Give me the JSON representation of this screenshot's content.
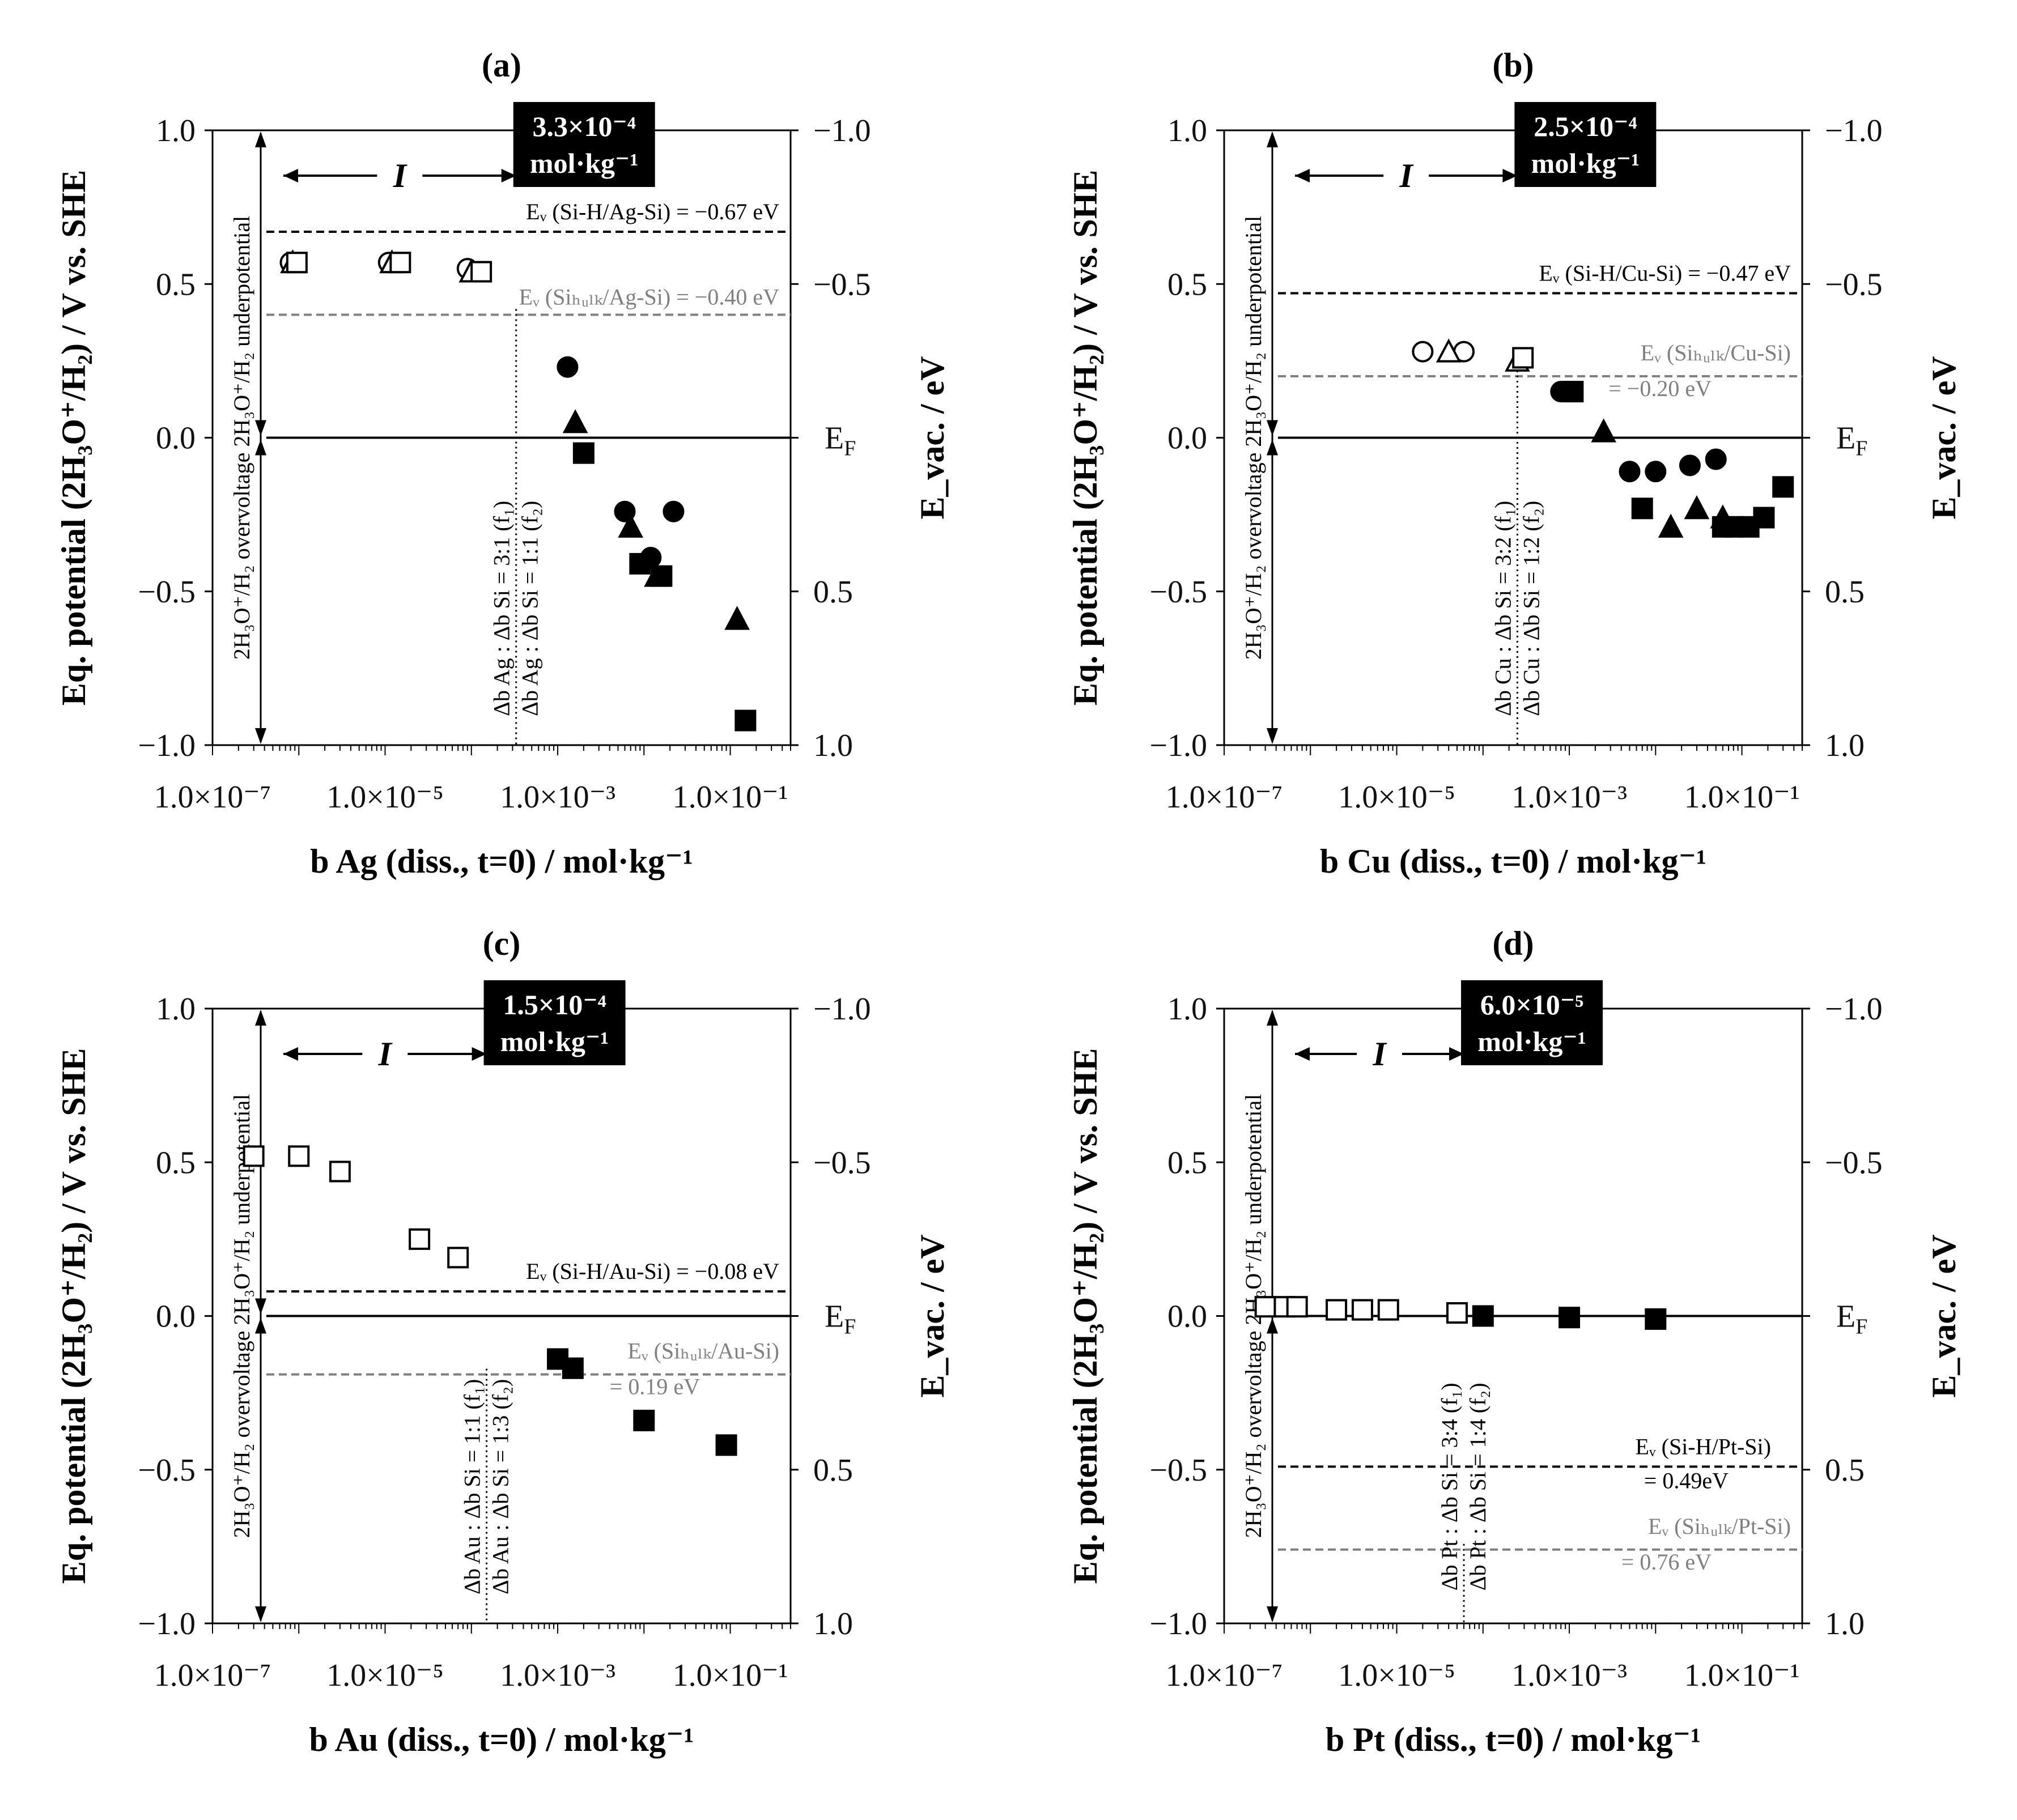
{
  "colors": {
    "black": "#000000",
    "gray": "#808080",
    "box": "#000000"
  },
  "panels": [
    {
      "id": "a",
      "title": "(a)",
      "xlabel": "b Ag (diss., t=0) / mol·kg⁻¹",
      "ylabel_left": "Eq. potential (2H₃O⁺/H₂) / V vs. SHE",
      "ylabel_right": "E_vac. / eV",
      "left_ticks": [
        "1.0",
        "0.5",
        "0.0",
        "−0.5",
        "−1.0"
      ],
      "right_ticks": [
        "−1.0",
        "−0.5",
        "E_F",
        "0.5",
        "1.0"
      ],
      "x_ticks": [
        "1.0×10⁻⁷",
        "1.0×10⁻⁵",
        "1.0×10⁻³",
        "1.0×10⁻¹"
      ],
      "box_line1": "3.3×10⁻⁴",
      "box_line2": "mol·kg⁻¹",
      "region_label": "I",
      "overvoltage_label": "2H₃O⁺/H₂ overvoltage 2H₃O⁺/H₂ underpotential",
      "ratio_label_1": "Δb Ag : Δb Si = 3:1 (f₁)",
      "ratio_label_2": "Δb Ag : Δb Si = 1:1 (f₂)",
      "ev_label_1": "Eᵥ (Si-H/Ag-Si) = −0.67 eV",
      "ev_label_2": "Eᵥ (Siₕᵤₗₖ/Ag-Si) = −0.40 eV",
      "ef_label": "E_F"
    },
    {
      "id": "b",
      "title": "(b)",
      "xlabel": "b Cu (diss., t=0) / mol·kg⁻¹",
      "ylabel_left": "Eq. potential (2H₃O⁺/H₂) / V vs. SHE",
      "ylabel_right": "E_vac. / eV",
      "left_ticks": [
        "1.0",
        "0.5",
        "0.0",
        "−0.5",
        "−1.0"
      ],
      "right_ticks": [
        "−1.0",
        "−0.5",
        "E_F",
        "0.5",
        "1.0"
      ],
      "x_ticks": [
        "1.0×10⁻⁷",
        "1.0×10⁻⁵",
        "1.0×10⁻³",
        "1.0×10⁻¹"
      ],
      "box_line1": "2.5×10⁻⁴",
      "box_line2": "mol·kg⁻¹",
      "region_label": "I",
      "overvoltage_label": "2H₃O⁺/H₂ overvoltage 2H₃O⁺/H₂ underpotential",
      "ratio_label_1": "Δb Cu : Δb Si = 3:2 (f₁)",
      "ratio_label_2": "Δb Cu : Δb Si = 1:2 (f₂)",
      "ev_label_1": "Eᵥ (Si-H/Cu-Si) = −0.47 eV",
      "ev_label_2": "Eᵥ (Siₕᵤₗₖ/Cu-Si)",
      "ev_label_2b": "= −0.20 eV",
      "ef_label": "E_F"
    },
    {
      "id": "c",
      "title": "(c)",
      "xlabel": "b Au (diss., t=0) / mol·kg⁻¹",
      "ylabel_left": "Eq. potential (2H₃O⁺/H₂) / V vs. SHE",
      "ylabel_right": "E_vac. / eV",
      "left_ticks": [
        "1.0",
        "0.5",
        "0.0",
        "−0.5",
        "−1.0"
      ],
      "right_ticks": [
        "−1.0",
        "−0.5",
        "E_F",
        "0.5",
        "1.0"
      ],
      "x_ticks": [
        "1.0×10⁻⁷",
        "1.0×10⁻⁵",
        "1.0×10⁻³",
        "1.0×10⁻¹"
      ],
      "box_line1": "1.5×10⁻⁴",
      "box_line2": "mol·kg⁻¹",
      "region_label": "I",
      "overvoltage_label": "2H₃O⁺/H₂ overvoltage 2H₃O⁺/H₂ underpotential",
      "ratio_label_1": "Δb Au : Δb Si = 1:1 (f₁)",
      "ratio_label_2": "Δb Au : Δb Si = 1:3 (f₂)",
      "ev_label_1": "Eᵥ (Si-H/Au-Si) = −0.08 eV",
      "ev_label_2": "Eᵥ (Siₕᵤₗₖ/Au-Si)",
      "ev_label_2b": "= 0.19 eV",
      "ef_label": "E_F"
    },
    {
      "id": "d",
      "title": "(d)",
      "xlabel": "b Pt (diss., t=0) / mol·kg⁻¹",
      "ylabel_left": "Eq. potential (2H₃O⁺/H₂) / V vs. SHE",
      "ylabel_right": "E_vac. / eV",
      "left_ticks": [
        "1.0",
        "0.5",
        "0.0",
        "−0.5",
        "−1.0"
      ],
      "right_ticks": [
        "−1.0",
        "−0.5",
        "E_F",
        "0.5",
        "1.0"
      ],
      "x_ticks": [
        "1.0×10⁻⁷",
        "1.0×10⁻⁵",
        "1.0×10⁻³",
        "1.0×10⁻¹"
      ],
      "box_line1": "6.0×10⁻⁵",
      "box_line2": "mol·kg⁻¹",
      "region_label": "I",
      "overvoltage_label": "2H₃O⁺/H₂ overvoltage 2H₃O⁺/H₂ underpotential",
      "ratio_label_1": "Δb Pt : Δb Si = 3:4 (f₁)",
      "ratio_label_2": "Δb Pt : Δb Si = 1:4 (f₂)",
      "ev_label_1": "Eᵥ (Si-H/Pt-Si)",
      "ev_label_1b": "= 0.49eV",
      "ev_label_2": "Eᵥ (Siₕᵤₗₖ/Pt-Si)",
      "ev_label_2b": "= 0.76 eV",
      "ef_label": "E_F"
    }
  ],
  "chart_data": [
    {
      "type": "scatter",
      "title": "(a)",
      "xlabel": "b Ag (diss., t=0) / mol·kg⁻¹",
      "ylabel": "Eq. potential (2H₃O⁺/H₂) / V vs. SHE",
      "xscale": "log",
      "xlim": [
        1e-07,
        0.5
      ],
      "ylim": [
        -1.0,
        1.0
      ],
      "threshold_b": 0.00033,
      "hlines": [
        {
          "y": 0.67,
          "style": "dashed",
          "color": "#000000"
        },
        {
          "y": 0.4,
          "style": "dashed",
          "color": "#808080"
        },
        {
          "y": 0.0,
          "style": "solid",
          "color": "#000000"
        }
      ],
      "series": [
        {
          "name": "open circle",
          "marker": "circle",
          "filled": false,
          "points": [
            [
              8e-07,
              0.57
            ],
            [
              1.1e-05,
              0.57
            ],
            [
              9e-05,
              0.55
            ]
          ]
        },
        {
          "name": "open triangle",
          "marker": "triangle",
          "filled": false,
          "points": [
            [
              8.5e-07,
              0.57
            ],
            [
              1.2e-05,
              0.57
            ],
            [
              0.0001,
              0.54
            ]
          ]
        },
        {
          "name": "open square",
          "marker": "square",
          "filled": false,
          "points": [
            [
              9.5e-07,
              0.57
            ],
            [
              1.5e-05,
              0.57
            ],
            [
              0.00013,
              0.54
            ]
          ]
        },
        {
          "name": "filled circle",
          "marker": "circle",
          "filled": true,
          "points": [
            [
              0.0013,
              0.23
            ],
            [
              0.006,
              -0.24
            ],
            [
              0.012,
              -0.39
            ],
            [
              0.022,
              -0.24
            ]
          ]
        },
        {
          "name": "filled triangle",
          "marker": "triangle",
          "filled": true,
          "points": [
            [
              0.0016,
              0.05
            ],
            [
              0.007,
              -0.29
            ],
            [
              0.014,
              -0.45
            ],
            [
              0.12,
              -0.59
            ]
          ]
        },
        {
          "name": "filled square",
          "marker": "square",
          "filled": true,
          "points": [
            [
              0.002,
              -0.05
            ],
            [
              0.009,
              -0.41
            ],
            [
              0.016,
              -0.45
            ],
            [
              0.15,
              -0.92
            ]
          ]
        }
      ]
    },
    {
      "type": "scatter",
      "title": "(b)",
      "xlabel": "b Cu (diss., t=0) / mol·kg⁻¹",
      "ylabel": "Eq. potential (2H₃O⁺/H₂) / V vs. SHE",
      "xscale": "log",
      "xlim": [
        1e-07,
        0.5
      ],
      "ylim": [
        -1.0,
        1.0
      ],
      "threshold_b": 0.00025,
      "hlines": [
        {
          "y": 0.47,
          "style": "dashed",
          "color": "#000000"
        },
        {
          "y": 0.2,
          "style": "dashed",
          "color": "#808080"
        },
        {
          "y": 0.0,
          "style": "solid",
          "color": "#000000"
        }
      ],
      "series": [
        {
          "name": "open circle",
          "marker": "circle",
          "filled": false,
          "points": [
            [
              2e-05,
              0.28
            ],
            [
              6e-05,
              0.28
            ]
          ]
        },
        {
          "name": "open triangle",
          "marker": "triangle",
          "filled": false,
          "points": [
            [
              4e-05,
              0.28
            ],
            [
              0.00025,
              0.25
            ]
          ]
        },
        {
          "name": "open square",
          "marker": "square",
          "filled": false,
          "points": [
            [
              0.00029,
              0.26
            ]
          ]
        },
        {
          "name": "filled circle",
          "marker": "circle",
          "filled": true,
          "points": [
            [
              0.0008,
              0.15
            ],
            [
              0.005,
              -0.11
            ],
            [
              0.01,
              -0.11
            ],
            [
              0.025,
              -0.09
            ],
            [
              0.05,
              -0.07
            ]
          ]
        },
        {
          "name": "filled triangle",
          "marker": "triangle",
          "filled": true,
          "points": [
            [
              0.0025,
              0.02
            ],
            [
              0.015,
              -0.29
            ],
            [
              0.03,
              -0.23
            ],
            [
              0.06,
              -0.26
            ]
          ]
        },
        {
          "name": "filled square",
          "marker": "square",
          "filled": true,
          "points": [
            [
              0.0011,
              0.15
            ],
            [
              0.007,
              -0.23
            ],
            [
              0.06,
              -0.29
            ],
            [
              0.08,
              -0.29
            ],
            [
              0.12,
              -0.29
            ],
            [
              0.18,
              -0.26
            ],
            [
              0.3,
              -0.16
            ]
          ]
        }
      ]
    },
    {
      "type": "scatter",
      "title": "(c)",
      "xlabel": "b Au (diss., t=0) / mol·kg⁻¹",
      "ylabel": "Eq. potential (2H₃O⁺/H₂) / V vs. SHE",
      "xscale": "log",
      "xlim": [
        1e-07,
        0.5
      ],
      "ylim": [
        -1.0,
        1.0
      ],
      "threshold_b": 0.00015,
      "hlines": [
        {
          "y": 0.08,
          "style": "dashed",
          "color": "#000000"
        },
        {
          "y": -0.19,
          "style": "dashed",
          "color": "#808080"
        },
        {
          "y": 0.0,
          "style": "solid",
          "color": "#000000"
        }
      ],
      "series": [
        {
          "name": "open square",
          "marker": "square",
          "filled": false,
          "points": [
            [
              3e-07,
              0.52
            ],
            [
              1e-06,
              0.52
            ],
            [
              3e-06,
              0.47
            ],
            [
              2.5e-05,
              0.25
            ],
            [
              7e-05,
              0.19
            ]
          ]
        },
        {
          "name": "filled square",
          "marker": "square",
          "filled": true,
          "points": [
            [
              0.001,
              -0.14
            ],
            [
              0.0015,
              -0.17
            ],
            [
              0.01,
              -0.34
            ],
            [
              0.09,
              -0.42
            ]
          ]
        }
      ]
    },
    {
      "type": "scatter",
      "title": "(d)",
      "xlabel": "b Pt (diss., t=0) / mol·kg⁻¹",
      "ylabel": "Eq. potential (2H₃O⁺/H₂) / V vs. SHE",
      "xscale": "log",
      "xlim": [
        1e-07,
        0.5
      ],
      "ylim": [
        -1.0,
        1.0
      ],
      "threshold_b": 6e-05,
      "hlines": [
        {
          "y": -0.49,
          "style": "dashed",
          "color": "#000000"
        },
        {
          "y": -0.76,
          "style": "dashed",
          "color": "#808080"
        },
        {
          "y": 0.0,
          "style": "solid",
          "color": "#000000"
        }
      ],
      "series": [
        {
          "name": "open square",
          "marker": "square",
          "filled": false,
          "points": [
            [
              3e-07,
              0.03
            ],
            [
              5e-07,
              0.03
            ],
            [
              7e-07,
              0.03
            ],
            [
              2e-06,
              0.02
            ],
            [
              4e-06,
              0.02
            ],
            [
              8e-06,
              0.02
            ],
            [
              5e-05,
              0.01
            ]
          ]
        },
        {
          "name": "filled square",
          "marker": "square",
          "filled": true,
          "points": [
            [
              0.0001,
              0.0
            ],
            [
              0.001,
              -0.005
            ],
            [
              0.01,
              -0.01
            ]
          ]
        }
      ]
    }
  ]
}
